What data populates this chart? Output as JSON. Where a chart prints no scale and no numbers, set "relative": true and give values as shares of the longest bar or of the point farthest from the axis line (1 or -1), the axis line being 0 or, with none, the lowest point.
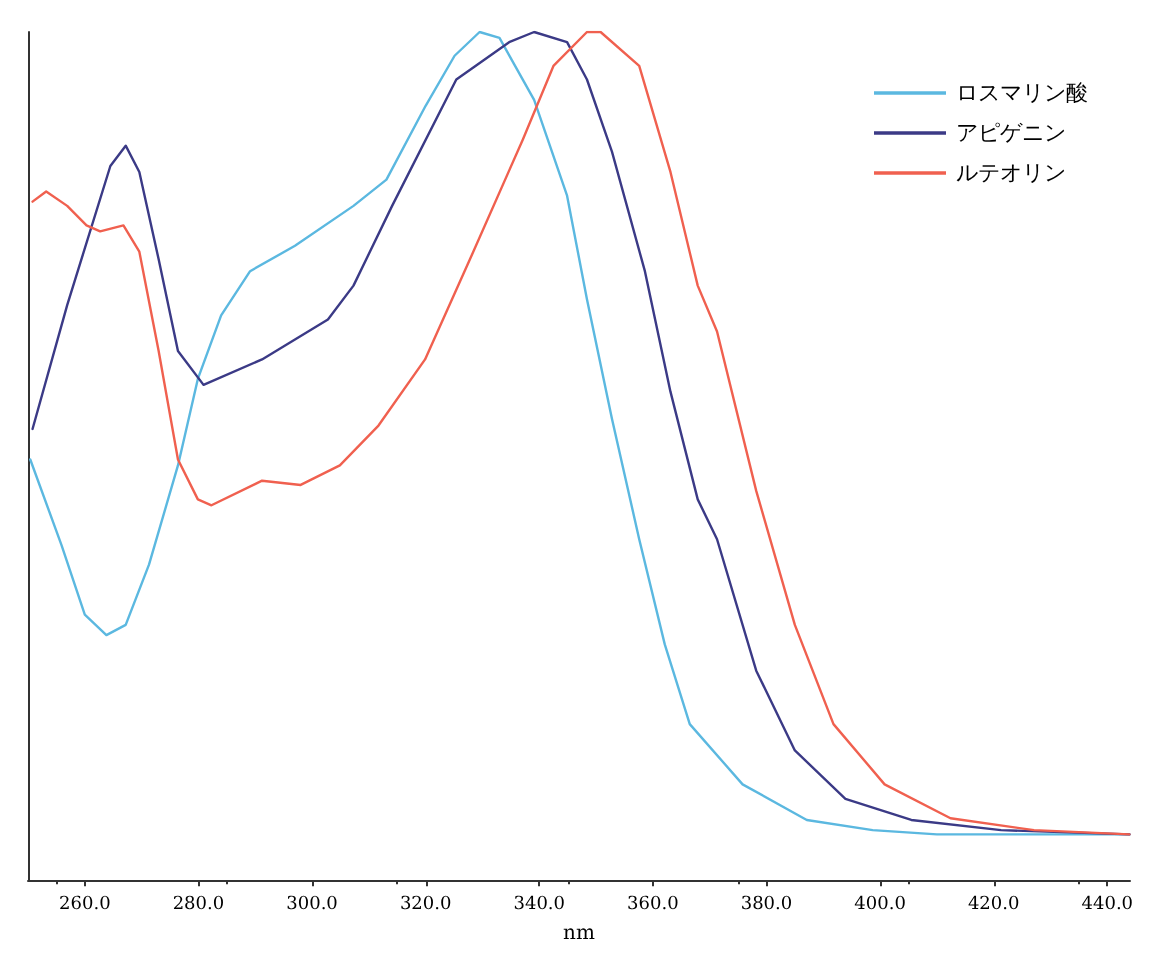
{
  "chart_data": {
    "type": "line",
    "xlabel": "nm",
    "relative": true,
    "legend": "top right",
    "grid": false,
    "marker": "none",
    "line_style": "solid",
    "tick_labels": "x",
    "xlim": [
      250,
      444
    ],
    "xticks": [
      {
        "value": 260,
        "label": "260.0"
      },
      {
        "value": 280,
        "label": "280.0"
      },
      {
        "value": 300,
        "label": "300.0"
      },
      {
        "value": 320,
        "label": "320.0"
      },
      {
        "value": 340,
        "label": "340.0"
      },
      {
        "value": 360,
        "label": "360.0"
      },
      {
        "value": 380,
        "label": "380.0"
      },
      {
        "value": 400,
        "label": "400.0"
      },
      {
        "value": 420,
        "label": "420.0"
      },
      {
        "value": 440,
        "label": "440.0"
      }
    ],
    "series": [
      {
        "name": "ロスマリン酸",
        "color": "#5bb8e0",
        "x": [
          250.4,
          255.9,
          260,
          263.8,
          267.2,
          271.3,
          276.4,
          279.9,
          284,
          289.1,
          297,
          307.3,
          313.1,
          320,
          325.1,
          329.5,
          333,
          339.1,
          344.9,
          348.4,
          352.8,
          357.6,
          362.1,
          366.5,
          375.8,
          387.1,
          398.7,
          410,
          443.9
        ],
        "values": [
          0.496,
          0.395,
          0.313,
          0.289,
          0.301,
          0.372,
          0.489,
          0.591,
          0.666,
          0.718,
          0.748,
          0.795,
          0.826,
          0.913,
          0.972,
          1.0,
          0.993,
          0.92,
          0.807,
          0.685,
          0.544,
          0.402,
          0.278,
          0.184,
          0.113,
          0.071,
          0.059,
          0.054,
          0.054
        ]
      },
      {
        "name": "アピゲニン",
        "color": "#3b3a86",
        "x": [
          250.8,
          256.9,
          264.5,
          267.2,
          269.6,
          273,
          276.4,
          280.9,
          291.2,
          302.8,
          307.3,
          314.1,
          325.4,
          334.7,
          339.1,
          344.9,
          348.4,
          352.8,
          358.6,
          363.1,
          367.9,
          371.3,
          378.2,
          385,
          393.9,
          405.5,
          421.3,
          443.9
        ],
        "values": [
          0.532,
          0.678,
          0.842,
          0.866,
          0.835,
          0.732,
          0.624,
          0.584,
          0.614,
          0.661,
          0.701,
          0.795,
          0.944,
          0.988,
          1.0,
          0.988,
          0.944,
          0.859,
          0.718,
          0.576,
          0.449,
          0.402,
          0.247,
          0.153,
          0.096,
          0.071,
          0.059,
          0.054
        ]
      },
      {
        "name": "ルテオリン",
        "color": "#f0604f",
        "x": [
          250.8,
          253.2,
          256.9,
          260.3,
          262.7,
          266.8,
          269.6,
          273,
          276.4,
          279.9,
          282.3,
          291.2,
          298,
          304.9,
          311.7,
          319.9,
          327.8,
          337.1,
          342.5,
          348.4,
          350.8,
          357.6,
          363.1,
          367.9,
          371.3,
          378.2,
          385,
          391.8,
          400.8,
          412.4,
          427.1,
          443.9
        ],
        "values": [
          0.8,
          0.812,
          0.795,
          0.772,
          0.765,
          0.772,
          0.741,
          0.624,
          0.496,
          0.449,
          0.442,
          0.471,
          0.466,
          0.489,
          0.536,
          0.614,
          0.732,
          0.873,
          0.96,
          1.0,
          1.0,
          0.96,
          0.835,
          0.701,
          0.647,
          0.459,
          0.301,
          0.184,
          0.113,
          0.073,
          0.059,
          0.054
        ]
      }
    ]
  }
}
